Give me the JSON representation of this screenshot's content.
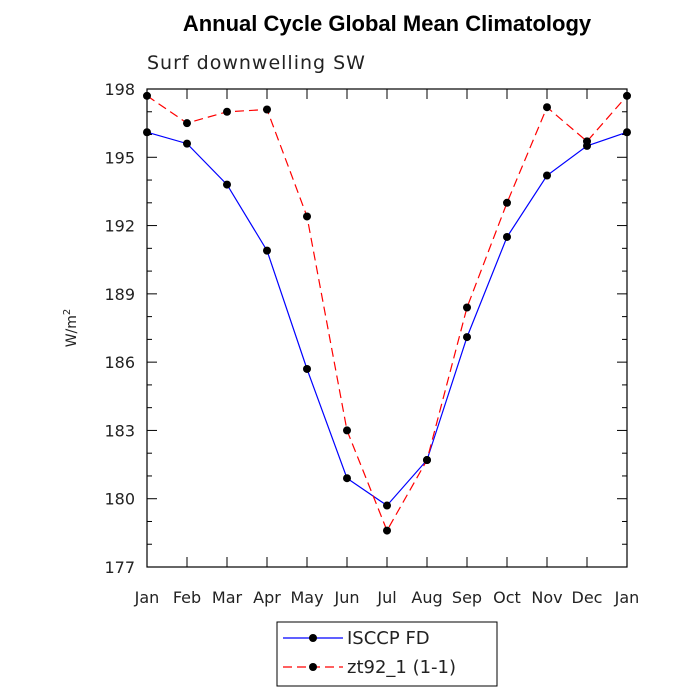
{
  "chart_data": {
    "type": "line",
    "title": "Annual Cycle Global Mean Climatology",
    "subtitle": "Surf downwelling SW",
    "ylabel": "W/m",
    "ylabel_sup": "2",
    "categories": [
      "Jan",
      "Feb",
      "Mar",
      "Apr",
      "May",
      "Jun",
      "Jul",
      "Aug",
      "Sep",
      "Oct",
      "Nov",
      "Dec",
      "Jan"
    ],
    "yticks": [
      177,
      180,
      183,
      186,
      189,
      192,
      195,
      198
    ],
    "ylim": [
      177,
      198
    ],
    "grid": false,
    "legend_position": "bottom-center",
    "series": [
      {
        "name": "ISCCP FD",
        "color": "#0000ff",
        "dash": "solid",
        "values": [
          196.1,
          195.6,
          193.8,
          190.9,
          185.7,
          180.9,
          179.7,
          181.7,
          187.1,
          191.5,
          194.2,
          195.5,
          196.1
        ]
      },
      {
        "name": "zt92_1 (1-1)",
        "color": "#ff0000",
        "dash": "dashed",
        "values": [
          197.7,
          196.5,
          197.0,
          197.1,
          192.4,
          183.0,
          178.6,
          181.7,
          188.4,
          193.0,
          197.2,
          195.7,
          197.7
        ]
      }
    ]
  }
}
